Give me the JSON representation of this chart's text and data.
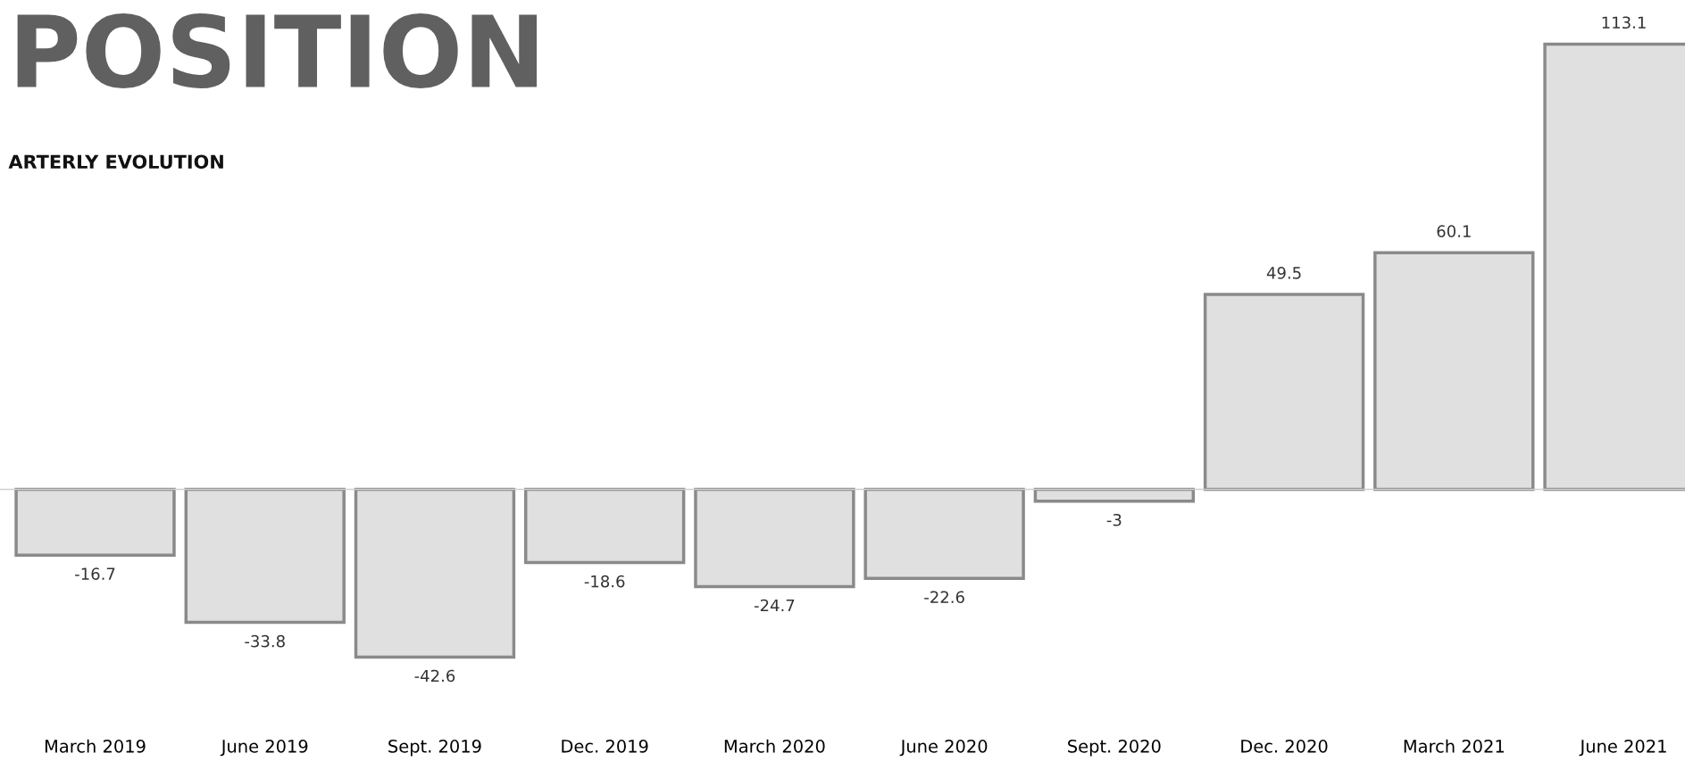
{
  "chart_data": {
    "type": "bar",
    "title": "POSITION",
    "subtitle": "ARTERLY EVOLUTION",
    "categories": [
      "March 2019",
      "June 2019",
      "Sept. 2019",
      "Dec. 2019",
      "March 2020",
      "June 2020",
      "Sept. 2020",
      "Dec. 2020",
      "March 2021",
      "June 2021"
    ],
    "values": [
      -16.7,
      -33.8,
      -42.6,
      -18.6,
      -24.7,
      -22.6,
      -3,
      49.5,
      60.1,
      113.1
    ],
    "color": "#e0e0e0",
    "data_labels": true,
    "grid": false,
    "legend": false
  }
}
